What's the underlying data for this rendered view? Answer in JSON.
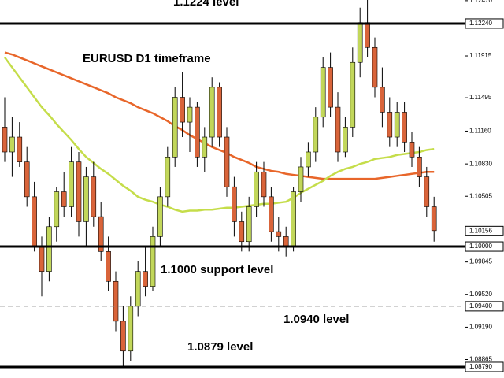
{
  "chart_data": {
    "type": "candlestick",
    "ylim": [
      1.08679,
      1.12477
    ],
    "yticks": [
      {
        "value": 1.1247,
        "label": "1.12470"
      },
      1.11915,
      1.11495,
      {
        "value": 1.1116,
        "label": "1.11160"
      },
      {
        "value": 1.1083,
        "label": "1.10830"
      },
      1.10505,
      1.09845,
      {
        "value": 1.0952,
        "label": "1.09520"
      },
      {
        "value": 1.0919,
        "label": "1.09190"
      },
      1.08865
    ],
    "up_color": "#c2d75a",
    "down_color": "#d9643a",
    "open": [
      1.112,
      1.1095,
      1.111,
      1.1085,
      1.105,
      1.1,
      1.0975,
      1.102,
      1.1055,
      1.104,
      1.1085,
      1.1025,
      1.107,
      1.103,
      1.0995,
      1.0965,
      1.0925,
      1.0895,
      1.094,
      1.0975,
      1.096,
      1.101,
      1.105,
      1.109,
      1.115,
      1.1125,
      1.114,
      1.109,
      1.111,
      1.116,
      1.111,
      1.106,
      1.1025,
      1.1005,
      1.104,
      1.1075,
      1.105,
      1.1015,
      1.101,
      1.1,
      1.1055,
      1.108,
      1.1095,
      1.113,
      1.118,
      1.114,
      1.1095,
      1.112,
      1.1185,
      1.1225,
      1.12,
      1.116,
      1.1135,
      1.111,
      1.1135,
      1.1105,
      1.109,
      1.107,
      1.104
    ],
    "high": [
      1.115,
      1.113,
      1.1125,
      1.11,
      1.1065,
      1.101,
      1.103,
      1.106,
      1.1075,
      1.11,
      1.1095,
      1.108,
      1.1085,
      1.1045,
      1.101,
      1.0975,
      1.094,
      1.095,
      1.0985,
      1.1,
      1.102,
      1.106,
      1.11,
      1.116,
      1.1175,
      1.115,
      1.1145,
      1.112,
      1.117,
      1.1165,
      1.112,
      1.107,
      1.1035,
      1.105,
      1.1085,
      1.1085,
      1.106,
      1.103,
      1.102,
      1.106,
      1.109,
      1.1105,
      1.114,
      1.119,
      1.1195,
      1.1155,
      1.113,
      1.12,
      1.124,
      1.1255,
      1.121,
      1.118,
      1.115,
      1.1145,
      1.1145,
      1.1115,
      1.11,
      1.108,
      1.105
    ],
    "low": [
      1.1085,
      1.107,
      1.108,
      1.104,
      1.0995,
      1.095,
      1.0965,
      1.1005,
      1.103,
      1.103,
      1.101,
      1.1,
      1.102,
      1.0985,
      1.0955,
      1.0915,
      1.088,
      1.0885,
      1.093,
      1.095,
      1.0955,
      1.1,
      1.104,
      1.108,
      1.111,
      1.1095,
      1.108,
      1.1075,
      1.11,
      1.11,
      1.105,
      1.101,
      1.0995,
      1.0995,
      1.103,
      1.104,
      1.1005,
      1.0995,
      1.099,
      1.0995,
      1.1045,
      1.107,
      1.1085,
      1.112,
      1.113,
      1.1085,
      1.109,
      1.111,
      1.117,
      1.119,
      1.115,
      1.112,
      1.11,
      1.11,
      1.1095,
      1.108,
      1.106,
      1.103,
      1.1005
    ],
    "close": [
      1.1095,
      1.111,
      1.1085,
      1.105,
      1.1,
      1.0975,
      1.102,
      1.1055,
      1.104,
      1.1085,
      1.1025,
      1.107,
      1.103,
      1.0995,
      1.0965,
      1.0925,
      1.0895,
      1.094,
      1.0975,
      1.096,
      1.101,
      1.105,
      1.109,
      1.115,
      1.1125,
      1.114,
      1.109,
      1.111,
      1.116,
      1.111,
      1.106,
      1.1025,
      1.1005,
      1.104,
      1.1075,
      1.105,
      1.1015,
      1.101,
      1.1,
      1.1055,
      1.108,
      1.1095,
      1.113,
      1.118,
      1.114,
      1.1095,
      1.112,
      1.1185,
      1.1225,
      1.12,
      1.116,
      1.1135,
      1.111,
      1.1135,
      1.1105,
      1.109,
      1.107,
      1.104,
      1.1016
    ],
    "moving_averages": [
      {
        "color": "#e8662a",
        "values": [
          1.1195,
          1.1193,
          1.119,
          1.1187,
          1.1184,
          1.1181,
          1.1178,
          1.1175,
          1.1172,
          1.1169,
          1.1166,
          1.1163,
          1.116,
          1.1157,
          1.1154,
          1.115,
          1.1147,
          1.1144,
          1.114,
          1.1137,
          1.1134,
          1.113,
          1.1126,
          1.1121,
          1.1117,
          1.1112,
          1.1108,
          1.1104,
          1.11,
          1.1097,
          1.1094,
          1.109,
          1.1087,
          1.1084,
          1.108,
          1.1078,
          1.1076,
          1.1075,
          1.1073,
          1.1072,
          1.1071,
          1.107,
          1.1069,
          1.1068,
          1.1068,
          1.1068,
          1.1068,
          1.1068,
          1.1068,
          1.1068,
          1.1068,
          1.1069,
          1.107,
          1.1071,
          1.1072,
          1.1073,
          1.1074,
          1.1075,
          1.1075
        ]
      },
      {
        "color": "#c5dd4a",
        "values": [
          1.119,
          1.118,
          1.117,
          1.116,
          1.115,
          1.114,
          1.1132,
          1.1123,
          1.1115,
          1.1107,
          1.1098,
          1.109,
          1.1084,
          1.1078,
          1.1073,
          1.1067,
          1.1061,
          1.1056,
          1.105,
          1.1047,
          1.1045,
          1.1042,
          1.104,
          1.1037,
          1.1035,
          1.1036,
          1.1036,
          1.1037,
          1.1037,
          1.1038,
          1.1039,
          1.1039,
          1.104,
          1.1041,
          1.1042,
          1.1043,
          1.1043,
          1.1044,
          1.1045,
          1.1049,
          1.1054,
          1.1058,
          1.1062,
          1.1066,
          1.1071,
          1.1075,
          1.1078,
          1.108,
          1.1083,
          1.1085,
          1.1088,
          1.1089,
          1.109,
          1.1092,
          1.1093,
          1.1094,
          1.1095,
          1.1097,
          1.1098
        ]
      }
    ],
    "levels": [
      {
        "value": 1.1224,
        "label": "1.12240",
        "style": "solid"
      },
      {
        "value": 1.1,
        "label": "1.10000",
        "style": "solid"
      },
      {
        "value": 1.094,
        "label": "1.09400",
        "style": "dashed"
      },
      {
        "value": 1.0879,
        "label": "1.08790",
        "style": "solid"
      }
    ],
    "last_price": 1.10156,
    "annotations": [
      "1.1224 level",
      "EURUSD D1 timeframe",
      "1.1000 support level",
      "1.0940 level",
      "1.0879 level"
    ]
  }
}
